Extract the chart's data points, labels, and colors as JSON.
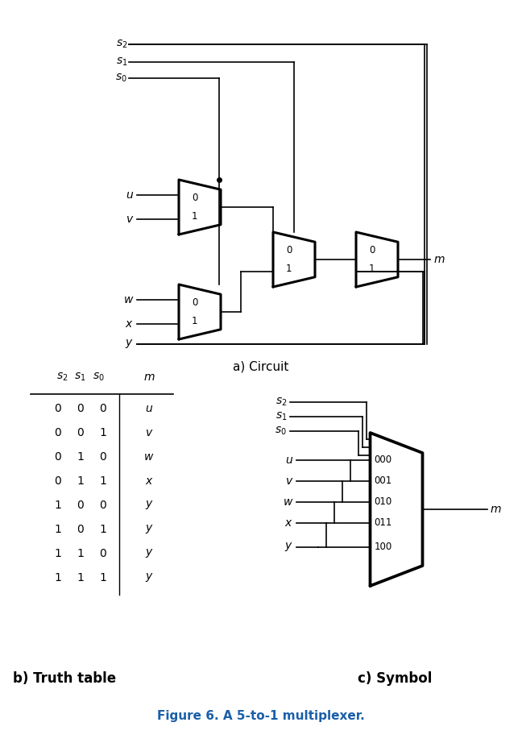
{
  "bg_color": "#ffffff",
  "text_color": "#000000",
  "blue_color": "#1a5fa8",
  "fig_title": "Figure 6. A 5-to-1 multiplexer.",
  "section_a_title": "a) Circuit",
  "section_b_title": "b) Truth table",
  "section_c_title": "c) Symbol",
  "truth_table_rows": [
    [
      "0  0  0",
      "u"
    ],
    [
      "0  0  1",
      "v"
    ],
    [
      "0  1  0",
      "w"
    ],
    [
      "0  1  1",
      "x"
    ],
    [
      "1  0  0",
      "y"
    ],
    [
      "1  0  1",
      "y"
    ],
    [
      "1  1  0",
      "y"
    ],
    [
      "1  1  1",
      "y"
    ]
  ]
}
